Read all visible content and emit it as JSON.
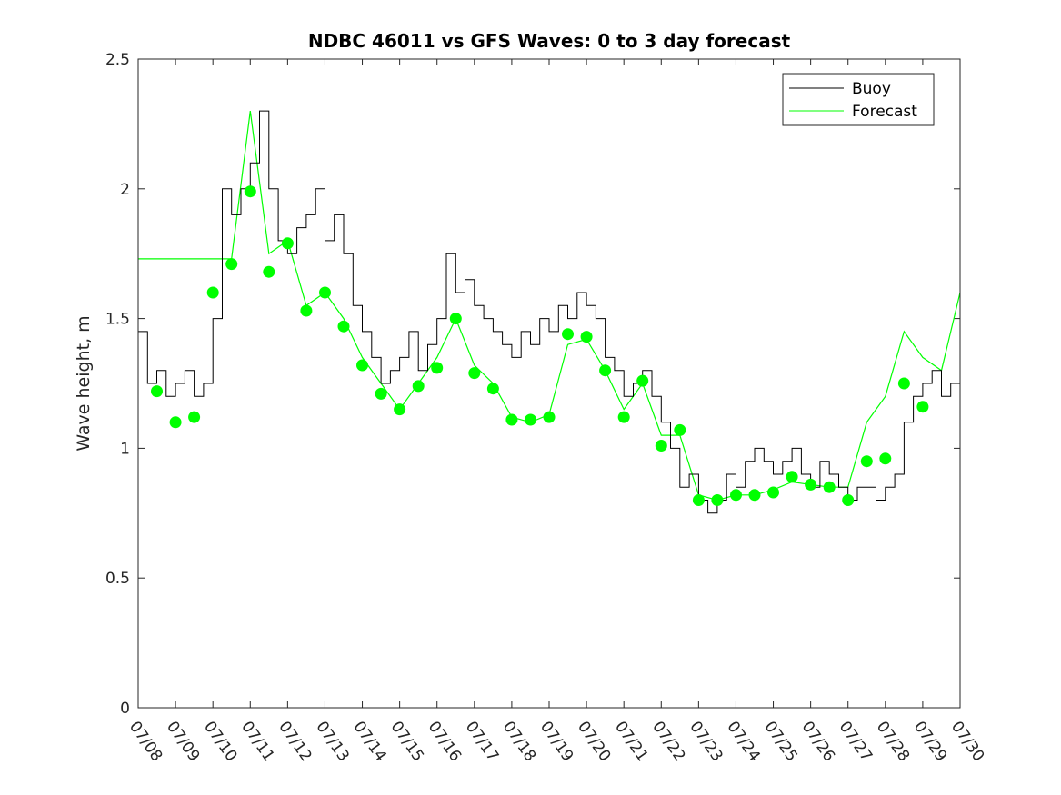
{
  "chart_data": {
    "type": "line",
    "title": "NDBC 46011 vs GFS Waves: 0 to 3 day forecast",
    "xlabel": "",
    "ylabel": "Wave height, m",
    "xlim": [
      "07/08",
      "07/30"
    ],
    "ylim": [
      0,
      2.5
    ],
    "x_ticks": [
      "07/08",
      "07/09",
      "07/10",
      "07/11",
      "07/12",
      "07/13",
      "07/14",
      "07/15",
      "07/16",
      "07/17",
      "07/18",
      "07/19",
      "07/20",
      "07/21",
      "07/22",
      "07/23",
      "07/24",
      "07/25",
      "07/26",
      "07/27",
      "07/28",
      "07/29",
      "07/30"
    ],
    "y_ticks": [
      "0",
      "0.5",
      "1",
      "1.5",
      "2",
      "2.5"
    ],
    "grid": false,
    "legend_position": "top-right",
    "colors": {
      "buoy": "#000000",
      "forecast": "#00ff00",
      "axis": "#262626"
    },
    "series": [
      {
        "name": "Buoy",
        "x": [
          "07/08",
          "07/08 06",
          "07/08 12",
          "07/08 18",
          "07/09",
          "07/09 06",
          "07/09 12",
          "07/09 18",
          "07/10",
          "07/10 06",
          "07/10 12",
          "07/10 18",
          "07/11",
          "07/11 06",
          "07/11 12",
          "07/11 18",
          "07/12",
          "07/12 06",
          "07/12 12",
          "07/12 18",
          "07/13",
          "07/13 06",
          "07/13 12",
          "07/13 18",
          "07/14",
          "07/14 06",
          "07/14 12",
          "07/14 18",
          "07/15",
          "07/15 06",
          "07/15 12",
          "07/15 18",
          "07/16",
          "07/16 06",
          "07/16 12",
          "07/16 18",
          "07/17",
          "07/17 06",
          "07/17 12",
          "07/17 18",
          "07/18",
          "07/18 06",
          "07/18 12",
          "07/18 18",
          "07/19",
          "07/19 06",
          "07/19 12",
          "07/19 18",
          "07/20",
          "07/20 06",
          "07/20 12",
          "07/20 18",
          "07/21",
          "07/21 06",
          "07/21 12",
          "07/21 18",
          "07/22",
          "07/22 06",
          "07/22 12",
          "07/22 18",
          "07/23",
          "07/23 06",
          "07/23 12",
          "07/23 18",
          "07/24",
          "07/24 06",
          "07/24 12",
          "07/24 18",
          "07/25",
          "07/25 06",
          "07/25 12",
          "07/25 18",
          "07/26",
          "07/26 06",
          "07/26 12",
          "07/26 18",
          "07/27",
          "07/27 06",
          "07/27 12",
          "07/27 18",
          "07/28",
          "07/28 06",
          "07/28 12",
          "07/28 18",
          "07/29",
          "07/29 06",
          "07/29 12",
          "07/29 18",
          "07/30"
        ],
        "values": [
          1.45,
          1.25,
          1.3,
          1.2,
          1.25,
          1.3,
          1.2,
          1.25,
          1.5,
          2.0,
          1.9,
          2.0,
          2.1,
          2.3,
          2.0,
          1.8,
          1.75,
          1.85,
          1.9,
          2.0,
          1.8,
          1.9,
          1.75,
          1.55,
          1.45,
          1.35,
          1.25,
          1.3,
          1.35,
          1.45,
          1.3,
          1.4,
          1.5,
          1.75,
          1.6,
          1.65,
          1.55,
          1.5,
          1.45,
          1.4,
          1.35,
          1.45,
          1.4,
          1.5,
          1.45,
          1.55,
          1.5,
          1.6,
          1.55,
          1.5,
          1.35,
          1.3,
          1.2,
          1.25,
          1.3,
          1.2,
          1.1,
          1.0,
          0.85,
          0.9,
          0.8,
          0.75,
          0.8,
          0.9,
          0.85,
          0.95,
          1.0,
          0.95,
          0.9,
          0.95,
          1.0,
          0.9,
          0.85,
          0.95,
          0.9,
          0.85,
          0.8,
          0.85,
          0.85,
          0.8,
          0.85,
          0.9,
          1.1,
          1.2,
          1.25,
          1.3,
          1.2,
          1.25,
          1.3
        ]
      },
      {
        "name": "Forecast",
        "x": [
          "07/08",
          "07/08 12",
          "07/09",
          "07/09 12",
          "07/10",
          "07/10 12",
          "07/11",
          "07/11 12",
          "07/12",
          "07/12 12",
          "07/13",
          "07/13 12",
          "07/14",
          "07/14 12",
          "07/15",
          "07/15 12",
          "07/16",
          "07/16 12",
          "07/17",
          "07/17 12",
          "07/18",
          "07/18 12",
          "07/19",
          "07/19 12",
          "07/20",
          "07/20 12",
          "07/21",
          "07/21 12",
          "07/22",
          "07/22 12",
          "07/23",
          "07/23 12",
          "07/24",
          "07/24 12",
          "07/25",
          "07/25 12",
          "07/26",
          "07/26 12",
          "07/27",
          "07/27 12",
          "07/28",
          "07/28 12",
          "07/29",
          "07/29 12",
          "07/30"
        ],
        "values": [
          1.73,
          1.73,
          1.73,
          1.73,
          1.73,
          1.73,
          2.3,
          1.75,
          1.8,
          1.55,
          1.6,
          1.5,
          1.35,
          1.25,
          1.15,
          1.25,
          1.35,
          1.5,
          1.32,
          1.25,
          1.12,
          1.1,
          1.13,
          1.4,
          1.42,
          1.3,
          1.15,
          1.25,
          1.05,
          1.05,
          0.82,
          0.8,
          0.82,
          0.82,
          0.84,
          0.87,
          0.86,
          0.85,
          0.85,
          1.1,
          1.2,
          1.45,
          1.35,
          1.3,
          1.6
        ]
      },
      {
        "name": "Forecast points",
        "x": [
          "07/08 12",
          "07/09",
          "07/09 12",
          "07/10",
          "07/10 12",
          "07/11",
          "07/11 12",
          "07/12",
          "07/12 12",
          "07/13",
          "07/13 12",
          "07/14",
          "07/14 12",
          "07/15",
          "07/15 12",
          "07/16",
          "07/16 12",
          "07/17",
          "07/17 12",
          "07/18",
          "07/18 12",
          "07/19",
          "07/19 12",
          "07/20",
          "07/20 12",
          "07/21",
          "07/21 12",
          "07/22",
          "07/22 12",
          "07/23",
          "07/23 12",
          "07/24",
          "07/24 12",
          "07/25",
          "07/25 12",
          "07/26",
          "07/26 12",
          "07/27",
          "07/27 12",
          "07/28",
          "07/28 12",
          "07/29"
        ],
        "values": [
          1.22,
          1.1,
          1.12,
          1.6,
          1.71,
          1.99,
          1.68,
          1.79,
          1.53,
          1.6,
          1.47,
          1.32,
          1.21,
          1.15,
          1.24,
          1.31,
          1.5,
          1.29,
          1.23,
          1.11,
          1.11,
          1.12,
          1.44,
          1.43,
          1.3,
          1.12,
          1.26,
          1.01,
          1.07,
          0.8,
          0.8,
          0.82,
          0.82,
          0.83,
          0.89,
          0.86,
          0.85,
          0.8,
          0.95,
          0.96,
          1.25,
          1.16
        ]
      }
    ]
  }
}
